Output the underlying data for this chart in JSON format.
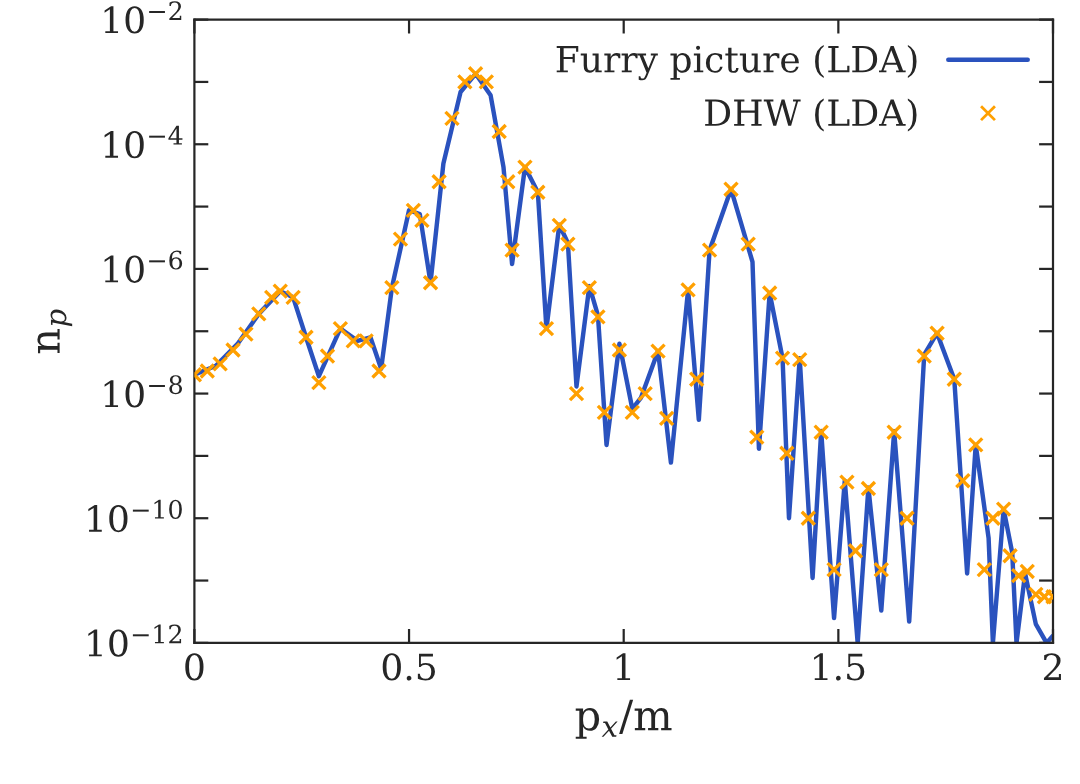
{
  "chart_data": {
    "type": "line",
    "xlabel": "p$_{x}$/m",
    "ylabel": "n$_{p}$",
    "log": "y",
    "legend": "top right",
    "grid": false,
    "xlim": [
      0,
      2
    ],
    "xticks": [
      0,
      0.5,
      1,
      1.5,
      2
    ],
    "ylim": [
      1e-12,
      0.01
    ],
    "yticks": [
      {
        "value": 1e-12,
        "label": "10$^{−12}$"
      },
      {
        "value": 1e-11,
        "label": null
      },
      {
        "value": 1e-10,
        "label": "10$^{−10}$"
      },
      {
        "value": 1e-09,
        "label": null
      },
      {
        "value": 1e-08,
        "label": "10$^{−8}$"
      },
      {
        "value": 1e-07,
        "label": null
      },
      {
        "value": 1e-06,
        "label": "10$^{−6}$"
      },
      {
        "value": 1e-05,
        "label": null
      },
      {
        "value": 0.0001,
        "label": "10$^{−4}$"
      },
      {
        "value": 0.001,
        "label": null
      },
      {
        "value": 0.01,
        "label": "10$^{−2}$"
      }
    ],
    "series": [
      {
        "name": "Furry picture (LDA)",
        "color": "#2a52be",
        "marker": "none",
        "line_style": "solid",
        "x": [
          0,
          0.05,
          0.1,
          0.15,
          0.2,
          0.23,
          0.26,
          0.29,
          0.34,
          0.38,
          0.41,
          0.435,
          0.46,
          0.5,
          0.525,
          0.55,
          0.58,
          0.62,
          0.655,
          0.69,
          0.72,
          0.74,
          0.77,
          0.8,
          0.82,
          0.85,
          0.87,
          0.89,
          0.92,
          0.94,
          0.96,
          0.99,
          1.02,
          1.04,
          1.08,
          1.11,
          1.15,
          1.175,
          1.2,
          1.25,
          1.3,
          1.315,
          1.34,
          1.37,
          1.385,
          1.41,
          1.44,
          1.46,
          1.49,
          1.515,
          1.545,
          1.57,
          1.6,
          1.63,
          1.665,
          1.7,
          1.73,
          1.77,
          1.8,
          1.82,
          1.85,
          1.86,
          1.885,
          1.905,
          1.915,
          1.935,
          1.96,
          1.985,
          2.0
        ],
        "values": [
          2e-08,
          2.8e-08,
          6.2e-08,
          1.9e-07,
          4.4e-07,
          3.5e-07,
          8e-08,
          1.9e-08,
          1.1e-07,
          7e-08,
          8e-08,
          2.5e-08,
          5e-07,
          8.7e-06,
          7.6e-06,
          6e-07,
          4.9e-05,
          0.00069,
          0.00135,
          0.00061,
          4.3e-05,
          1.2e-06,
          4.3e-05,
          1.7e-05,
          1.1e-07,
          5.1e-06,
          2.6e-06,
          1.3e-08,
          5.3e-07,
          1.8e-07,
          1.5e-09,
          6.3e-08,
          5.7e-09,
          8.5e-09,
          4.8e-08,
          7.8e-10,
          4.6e-07,
          3.8e-09,
          2e-06,
          1.9e-05,
          1.3e-06,
          1.3e-09,
          4.1e-07,
          3.7e-08,
          1e-10,
          3.7e-08,
          1.1e-11,
          2.5e-09,
          2.5e-12,
          4e-10,
          1e-12,
          3.1e-10,
          3.3e-12,
          2.5e-09,
          2.2e-12,
          4.2e-08,
          9.3e-08,
          1.7e-08,
          1.3e-11,
          1.5e-09,
          4.8e-11,
          1e-12,
          1.4e-10,
          2.8e-11,
          1e-12,
          1.3e-11,
          2e-12,
          1e-12,
          1.3e-12
        ]
      },
      {
        "name": "DHW (LDA)",
        "type": "scatter",
        "color": "#ffa000",
        "marker": "cross",
        "x": [
          0,
          0.03,
          0.06,
          0.09,
          0.12,
          0.15,
          0.18,
          0.2,
          0.23,
          0.26,
          0.29,
          0.31,
          0.34,
          0.37,
          0.4,
          0.43,
          0.46,
          0.48,
          0.51,
          0.53,
          0.55,
          0.57,
          0.6,
          0.63,
          0.655,
          0.68,
          0.71,
          0.73,
          0.74,
          0.77,
          0.8,
          0.82,
          0.85,
          0.87,
          0.89,
          0.92,
          0.94,
          0.955,
          0.99,
          1.02,
          1.05,
          1.08,
          1.1,
          1.15,
          1.17,
          1.2,
          1.25,
          1.29,
          1.31,
          1.34,
          1.37,
          1.38,
          1.41,
          1.43,
          1.46,
          1.49,
          1.52,
          1.54,
          1.57,
          1.6,
          1.63,
          1.66,
          1.7,
          1.73,
          1.77,
          1.79,
          1.82,
          1.84,
          1.86,
          1.885,
          1.9,
          1.92,
          1.94,
          1.96,
          1.98,
          2.0
        ],
        "values": [
          2e-08,
          2.3e-08,
          3e-08,
          5e-08,
          9e-08,
          1.9e-07,
          3.5e-07,
          4.4e-07,
          3.5e-07,
          8e-08,
          1.5e-08,
          4e-08,
          1.1e-07,
          7e-08,
          7e-08,
          2.3e-08,
          5e-07,
          3e-06,
          8.7e-06,
          6e-06,
          6e-07,
          2.5e-05,
          0.00026,
          0.001,
          0.00135,
          0.001,
          0.00016,
          2.5e-05,
          2e-06,
          4.3e-05,
          1.7e-05,
          1.1e-07,
          5e-06,
          2.5e-06,
          1e-08,
          5e-07,
          1.7e-07,
          5e-09,
          5e-08,
          5e-09,
          1e-08,
          4.8e-08,
          4e-09,
          4.6e-07,
          1.7e-08,
          2e-06,
          1.9e-05,
          2.5e-06,
          2e-09,
          4.1e-07,
          3.7e-08,
          1.1e-09,
          3.5e-08,
          1e-10,
          2.4e-09,
          1.5e-11,
          3.8e-10,
          3e-11,
          3e-10,
          1.5e-11,
          2.4e-09,
          1e-10,
          4e-08,
          9.3e-08,
          1.7e-08,
          4e-10,
          1.5e-09,
          1.5e-11,
          1e-10,
          1.4e-10,
          2.5e-11,
          1.2e-11,
          1.4e-11,
          6e-12,
          5.5e-12,
          5.5e-12
        ]
      }
    ]
  }
}
